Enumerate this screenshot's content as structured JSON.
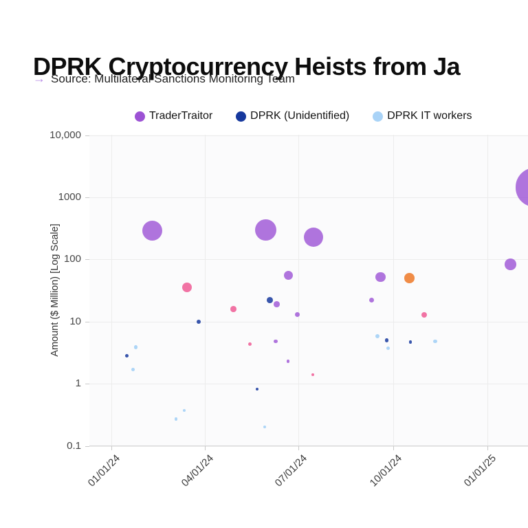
{
  "title": "DPRK Cryptocurrency Heists from Ja",
  "source": {
    "arrow": "→",
    "text": "Source: Multilateral Sanctions Monitoring Team"
  },
  "legend": [
    {
      "label": "TraderTraitor",
      "color": "#9c52d4"
    },
    {
      "label": "DPRK (Unidentified)",
      "color": "#16389d"
    },
    {
      "label": "DPRK IT workers",
      "color": "#a9d3f7"
    }
  ],
  "chart_data": {
    "type": "scatter",
    "subtype": "bubble-time-log",
    "title": "DPRK Cryptocurrency Heists from Ja",
    "xlabel": "",
    "ylabel": "Amount ($ Million) [Log Scale]",
    "y_axis": {
      "scale": "log",
      "range": [
        0.1,
        10000
      ],
      "ticks": [
        {
          "label": "10,000",
          "value": 10000
        },
        {
          "label": "1000",
          "value": 1000
        },
        {
          "label": "100",
          "value": 100
        },
        {
          "label": "10",
          "value": 10
        },
        {
          "label": "1",
          "value": 1
        },
        {
          "label": "0.1",
          "value": 0.1
        }
      ]
    },
    "x_axis": {
      "type": "date",
      "ticks": [
        {
          "label": "01/01/24",
          "date": "2024-01-01"
        },
        {
          "label": "04/01/24",
          "date": "2024-04-01"
        },
        {
          "label": "07/01/24",
          "date": "2024-07-01"
        },
        {
          "label": "10/01/24",
          "date": "2024-10-01"
        },
        {
          "label": "01/01/25",
          "date": "2025-01-01"
        }
      ]
    },
    "grid": true,
    "legend_position": "top",
    "series": [
      {
        "name": "TraderTraitor",
        "color": "#9c52d4",
        "opacity": 0.8,
        "points": [
          {
            "date": "2024-02-10",
            "amount_musd": 290,
            "r": 14.5
          },
          {
            "date": "2024-05-30",
            "amount_musd": 300,
            "r": 15.5
          },
          {
            "date": "2024-07-16",
            "amount_musd": 230,
            "r": 14
          },
          {
            "date": "2024-06-21",
            "amount_musd": 55,
            "r": 6.5
          },
          {
            "date": "2024-06-10",
            "amount_musd": 19,
            "r": 4.3
          },
          {
            "date": "2024-06-30",
            "amount_musd": 13,
            "r": 3.7
          },
          {
            "date": "2024-06-09",
            "amount_musd": 4.8,
            "r": 2.7
          },
          {
            "date": "2024-06-21",
            "amount_musd": 2.3,
            "r": 2.4
          },
          {
            "date": "2024-09-10",
            "amount_musd": 22,
            "r": 3.6
          },
          {
            "date": "2024-09-19",
            "amount_musd": 52,
            "r": 7.3
          },
          {
            "date": "2025-01-23",
            "amount_musd": 84,
            "r": 8.3
          },
          {
            "date": "2025-02-16",
            "amount_musd": 1450,
            "r": 28.3
          }
        ]
      },
      {
        "name": "DPRK (Unidentified)",
        "color": "#16389d",
        "opacity": 0.85,
        "points": [
          {
            "date": "2024-01-16",
            "amount_musd": 2.8,
            "r": 2.4
          },
          {
            "date": "2024-03-26",
            "amount_musd": 10,
            "r": 3
          },
          {
            "date": "2024-06-03",
            "amount_musd": 22,
            "r": 4.4
          },
          {
            "date": "2024-05-22",
            "amount_musd": 0.82,
            "r": 2.2
          },
          {
            "date": "2024-09-25",
            "amount_musd": 5,
            "r": 2.8
          },
          {
            "date": "2024-10-18",
            "amount_musd": 4.7,
            "r": 2.4
          }
        ]
      },
      {
        "name": "DPRK IT workers",
        "color": "#a9d3f7",
        "opacity": 0.95,
        "points": [
          {
            "date": "2024-01-25",
            "amount_musd": 3.9,
            "r": 2.8
          },
          {
            "date": "2024-01-22",
            "amount_musd": 1.7,
            "r": 2.4
          },
          {
            "date": "2024-03-04",
            "amount_musd": 0.27,
            "r": 2.2
          },
          {
            "date": "2024-03-12",
            "amount_musd": 0.37,
            "r": 2.2
          },
          {
            "date": "2024-05-29",
            "amount_musd": 0.2,
            "r": 2
          },
          {
            "date": "2024-09-16",
            "amount_musd": 5.9,
            "r": 3
          },
          {
            "date": "2024-09-26",
            "amount_musd": 3.7,
            "r": 2.5
          },
          {
            "date": "2024-11-11",
            "amount_musd": 4.8,
            "r": 2.6
          }
        ]
      },
      {
        "name": "",
        "color": "#ee5b94",
        "opacity": 0.85,
        "points": [
          {
            "date": "2024-03-15",
            "amount_musd": 36,
            "r": 7
          },
          {
            "date": "2024-04-29",
            "amount_musd": 16,
            "r": 4.3
          },
          {
            "date": "2024-05-15",
            "amount_musd": 4.3,
            "r": 2.5
          },
          {
            "date": "2024-07-15",
            "amount_musd": 1.4,
            "r": 2
          },
          {
            "date": "2024-10-31",
            "amount_musd": 13,
            "r": 4
          }
        ]
      },
      {
        "name": "",
        "color": "#ee7f33",
        "opacity": 0.9,
        "points": [
          {
            "date": "2024-10-17",
            "amount_musd": 50,
            "r": 7.3
          }
        ]
      }
    ]
  },
  "colors": {
    "source_arrow": "#b78ae6",
    "gridline": "#ececec",
    "axis_line": "#d7d7d7"
  }
}
